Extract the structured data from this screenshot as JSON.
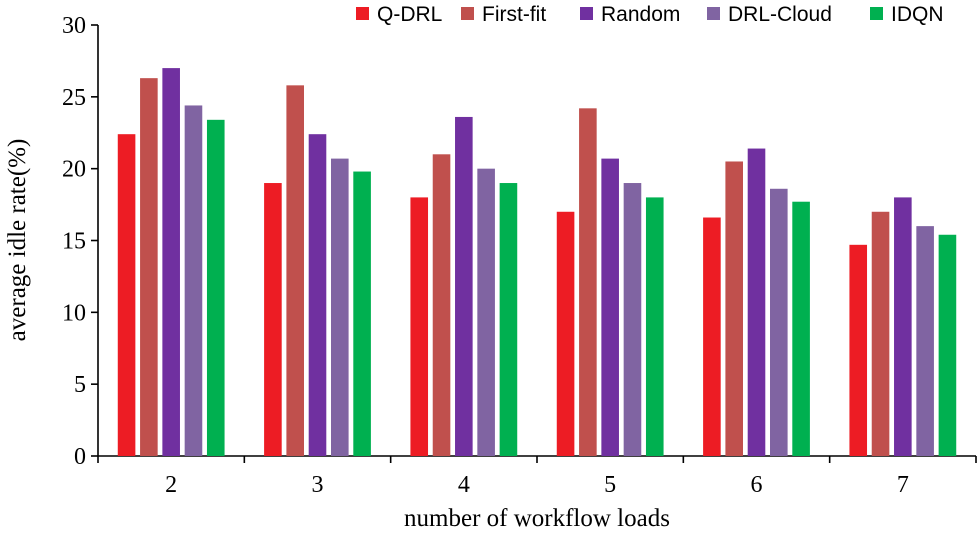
{
  "chart_data": {
    "type": "bar",
    "title": "",
    "xlabel": "number of workflow loads",
    "ylabel": "average idle rate(%)",
    "categories": [
      "2",
      "3",
      "4",
      "5",
      "6",
      "7"
    ],
    "ylim": [
      0,
      30
    ],
    "yticks": [
      0,
      5,
      10,
      15,
      20,
      25,
      30
    ],
    "grid": false,
    "legend_position": "top-right",
    "series": [
      {
        "name": "Q-DRL",
        "color": "#ed1c24",
        "values": [
          22.4,
          19.0,
          18.0,
          17.0,
          16.6,
          14.7
        ]
      },
      {
        "name": "First-fit",
        "color": "#c0504d",
        "values": [
          26.3,
          25.8,
          21.0,
          24.2,
          20.5,
          17.0
        ]
      },
      {
        "name": "Random",
        "color": "#7030a0",
        "values": [
          27.0,
          22.4,
          23.6,
          20.7,
          21.4,
          18.0
        ]
      },
      {
        "name": "DRL-Cloud",
        "color": "#8064a2",
        "values": [
          24.4,
          20.7,
          20.0,
          19.0,
          18.6,
          16.0
        ]
      },
      {
        "name": "IDQN",
        "color": "#00b050",
        "values": [
          23.4,
          19.8,
          19.0,
          18.0,
          17.7,
          15.4
        ]
      }
    ]
  }
}
